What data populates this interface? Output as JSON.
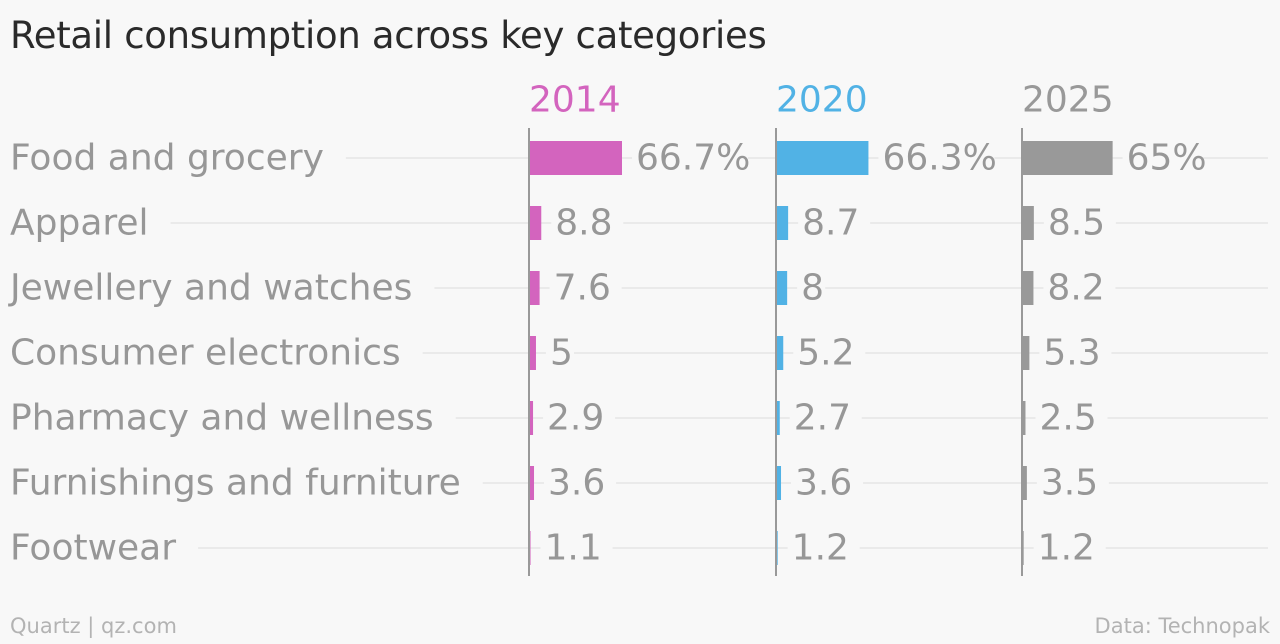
{
  "chart_data": {
    "type": "bar",
    "orientation": "horizontal",
    "layout": "small-multiples",
    "title": "Retail consumption across key categories",
    "categories": [
      "Food and grocery",
      "Apparel",
      "Jewellery and watches",
      "Consumer electronics",
      "Pharmacy and wellness",
      "Furnishings and furniture",
      "Footwear"
    ],
    "series": [
      {
        "name": "2014",
        "color": "#d364be",
        "values": [
          66.7,
          8.8,
          7.6,
          5,
          2.9,
          3.6,
          1.1
        ],
        "labels": [
          "66.7%",
          "8.8",
          "7.6",
          "5",
          "2.9",
          "3.6",
          "1.1"
        ]
      },
      {
        "name": "2020",
        "color": "#51b2e5",
        "values": [
          66.3,
          8.7,
          8,
          5.2,
          2.7,
          3.6,
          1.2
        ],
        "labels": [
          "66.3%",
          "8.7",
          "8",
          "5.2",
          "2.7",
          "3.6",
          "1.2"
        ]
      },
      {
        "name": "2025",
        "color": "#999999",
        "values": [
          65,
          8.5,
          8.2,
          5.3,
          2.5,
          3.5,
          1.2
        ],
        "labels": [
          "65%",
          "8.5",
          "8.2",
          "5.3",
          "2.5",
          "3.5",
          "1.2"
        ]
      }
    ],
    "xlim": [
      0,
      100
    ],
    "grid": true,
    "legend": "none"
  },
  "footer": {
    "source_left": "Quartz | qz.com",
    "source_right": "Data: Technopak"
  }
}
